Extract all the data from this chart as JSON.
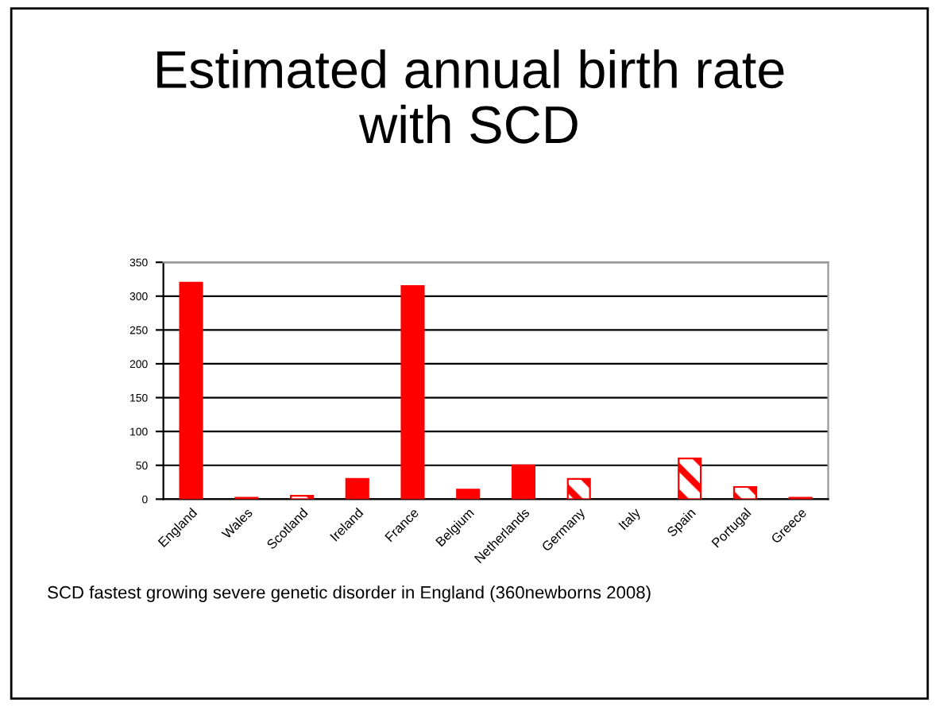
{
  "chart_data": {
    "type": "bar",
    "title": "Estimated annual birth rate\nwith SCD",
    "categories": [
      "England",
      "Wales",
      "Scotland",
      "Ireland",
      "France",
      "Belgium",
      "Netherlands",
      "Germany",
      "Italy",
      "Spain",
      "Portugal",
      "Greece"
    ],
    "series": [
      {
        "color": "#ff0000",
        "values": [
          320,
          2,
          null,
          30,
          315,
          14,
          50,
          null,
          null,
          null,
          null,
          2
        ]
      },
      {
        "color": "#ff0000",
        "values": [
          null,
          null,
          5,
          null,
          null,
          null,
          null,
          30,
          null,
          60,
          18,
          null
        ]
      }
    ],
    "ylim": [
      0,
      350
    ],
    "yticks": [
      0,
      50,
      100,
      150,
      200,
      250,
      300,
      350
    ],
    "grid": "y",
    "annotations": [
      "SCD fastest growing severe genetic disorder in England (360newborns 2008)"
    ]
  }
}
